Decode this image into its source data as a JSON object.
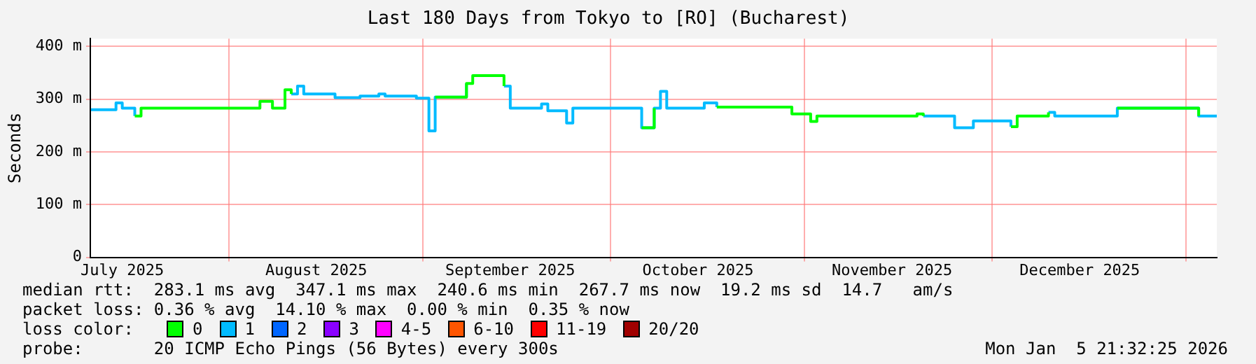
{
  "chart_data": {
    "type": "step",
    "title": "Last 180 Days from Tokyo to [RO] (Bucharest)",
    "ylabel": "Seconds",
    "x": [
      "2025-07-10",
      "2025-07-14",
      "2025-07-15",
      "2025-07-17",
      "2025-07-18",
      "2025-07-25",
      "2025-08-01",
      "2025-08-06",
      "2025-08-08",
      "2025-08-10",
      "2025-08-11",
      "2025-08-12",
      "2025-08-13",
      "2025-08-18",
      "2025-08-22",
      "2025-08-25",
      "2025-08-26",
      "2025-08-31",
      "2025-09-02",
      "2025-09-03",
      "2025-09-08",
      "2025-09-09",
      "2025-09-14",
      "2025-09-15",
      "2025-09-20",
      "2025-09-21",
      "2025-09-24",
      "2025-09-25",
      "2025-10-06",
      "2025-10-08",
      "2025-10-09",
      "2025-10-10",
      "2025-10-16",
      "2025-10-18",
      "2025-10-30",
      "2025-11-02",
      "2025-11-03",
      "2025-11-19",
      "2025-11-20",
      "2025-11-25",
      "2025-11-28",
      "2025-12-04",
      "2025-12-05",
      "2025-12-10",
      "2025-12-11",
      "2025-12-21",
      "2026-01-03",
      "2026-01-05T21:32"
    ],
    "series": [
      {
        "name": "0",
        "color": "#00ff00",
        "values": [
          null,
          null,
          null,
          268,
          283,
          283,
          283,
          296,
          283,
          318,
          310,
          null,
          null,
          null,
          null,
          null,
          null,
          null,
          null,
          304,
          330,
          345,
          325,
          null,
          null,
          null,
          null,
          null,
          246,
          283,
          null,
          null,
          null,
          285,
          272,
          258,
          268,
          272,
          268,
          null,
          null,
          248,
          268,
          275,
          null,
          283,
          268,
          null
        ]
      },
      {
        "name": "1",
        "color": "#00bbff",
        "values": [
          280,
          293,
          283,
          268,
          null,
          null,
          null,
          null,
          null,
          null,
          310,
          325,
          310,
          303,
          306,
          310,
          306,
          302,
          240,
          304,
          330,
          null,
          325,
          283,
          291,
          278,
          255,
          283,
          246,
          283,
          315,
          283,
          293,
          285,
          null,
          null,
          null,
          null,
          268,
          246,
          259,
          248,
          null,
          275,
          268,
          283,
          268,
          268
        ]
      },
      {
        "name": "2",
        "color": "#0066ff",
        "values": [
          null,
          null,
          null,
          null,
          null,
          null,
          null,
          null,
          null,
          null,
          null,
          null,
          null,
          null,
          null,
          null,
          null,
          null,
          null,
          null,
          null,
          null,
          null,
          null,
          null,
          null,
          null,
          null,
          null,
          null,
          null,
          null,
          null,
          null,
          null,
          null,
          null,
          null,
          null,
          null,
          null,
          null,
          null,
          null,
          null,
          null,
          null,
          null
        ]
      },
      {
        "name": "3",
        "color": "#8a00ff",
        "values": [
          null,
          null,
          null,
          null,
          null,
          null,
          null,
          null,
          null,
          null,
          null,
          null,
          null,
          null,
          null,
          null,
          null,
          null,
          null,
          null,
          null,
          null,
          null,
          null,
          null,
          null,
          null,
          null,
          null,
          null,
          null,
          null,
          null,
          null,
          null,
          null,
          null,
          null,
          null,
          null,
          null,
          null,
          null,
          null,
          null,
          null,
          null,
          null
        ]
      },
      {
        "name": "4-5",
        "color": "#ff00ff",
        "values": [
          null,
          null,
          null,
          null,
          null,
          null,
          null,
          null,
          null,
          null,
          null,
          null,
          null,
          null,
          null,
          null,
          null,
          null,
          null,
          null,
          null,
          null,
          null,
          null,
          null,
          null,
          null,
          null,
          null,
          null,
          null,
          null,
          null,
          null,
          null,
          null,
          null,
          null,
          null,
          null,
          null,
          null,
          null,
          null,
          null,
          null,
          null,
          null
        ]
      },
      {
        "name": "6-10",
        "color": "#ff5500",
        "values": [
          null,
          null,
          null,
          null,
          null,
          null,
          null,
          null,
          null,
          null,
          null,
          null,
          null,
          null,
          null,
          null,
          null,
          null,
          null,
          null,
          null,
          null,
          null,
          null,
          null,
          null,
          null,
          null,
          null,
          null,
          null,
          null,
          null,
          null,
          null,
          null,
          null,
          null,
          null,
          null,
          null,
          null,
          null,
          null,
          null,
          null,
          null,
          null
        ]
      },
      {
        "name": "11-19",
        "color": "#ff0000",
        "values": [
          null,
          null,
          null,
          null,
          null,
          null,
          null,
          null,
          null,
          null,
          null,
          null,
          null,
          null,
          null,
          null,
          null,
          null,
          null,
          null,
          null,
          null,
          null,
          null,
          null,
          null,
          null,
          null,
          null,
          null,
          null,
          null,
          null,
          null,
          null,
          null,
          null,
          null,
          null,
          null,
          null,
          null,
          null,
          null,
          null,
          null,
          null,
          null
        ]
      },
      {
        "name": "20/20",
        "color": "#a10000",
        "values": [
          null,
          null,
          null,
          null,
          null,
          null,
          null,
          null,
          null,
          null,
          null,
          null,
          null,
          null,
          null,
          null,
          null,
          null,
          null,
          null,
          null,
          null,
          null,
          null,
          null,
          null,
          null,
          null,
          null,
          null,
          null,
          null,
          null,
          null,
          null,
          null,
          null,
          null,
          null,
          null,
          null,
          null,
          null,
          null,
          null,
          null,
          null,
          null
        ]
      }
    ],
    "xlim": [
      "2025-07-09T21:32",
      "2026-01-05T21:32"
    ],
    "xticks": [
      {
        "value": "2025-07-15",
        "label": "July 2025"
      },
      {
        "value": "2025-08-01",
        "label": null
      },
      {
        "value": "2025-08-15",
        "label": "August 2025"
      },
      {
        "value": "2025-09-01",
        "label": null
      },
      {
        "value": "2025-09-15",
        "label": "September 2025"
      },
      {
        "value": "2025-10-01",
        "label": null
      },
      {
        "value": "2025-10-15",
        "label": "October 2025"
      },
      {
        "value": "2025-11-01",
        "label": null
      },
      {
        "value": "2025-11-15",
        "label": "November 2025"
      },
      {
        "value": "2025-12-01",
        "label": null
      },
      {
        "value": "2025-12-15",
        "label": "December 2025"
      },
      {
        "value": "2026-01-01",
        "label": null
      }
    ],
    "ylim": [
      0,
      415
    ],
    "yticks": [
      0,
      {
        "value": 100,
        "label": "100 m"
      },
      {
        "value": 200,
        "label": "200 m"
      },
      {
        "value": 300,
        "label": "300 m"
      },
      {
        "value": 400,
        "label": "400 m"
      }
    ],
    "grid": true,
    "legend": "bottom",
    "legend_title": "loss color:",
    "marker": "none",
    "line_style": "solid",
    "annotations": [
      "median rtt:  283.1 ms avg  347.1 ms max  240.6 ms min  267.7 ms now  19.2 ms sd  14.7   am/s",
      "packet loss: 0.36 % avg  14.10 % max  0.00 % min  0.35 % now",
      "probe:       20 ICMP Echo Pings (56 Bytes) every 300s",
      "Mon Jan  5 21:32:25 2026"
    ]
  }
}
